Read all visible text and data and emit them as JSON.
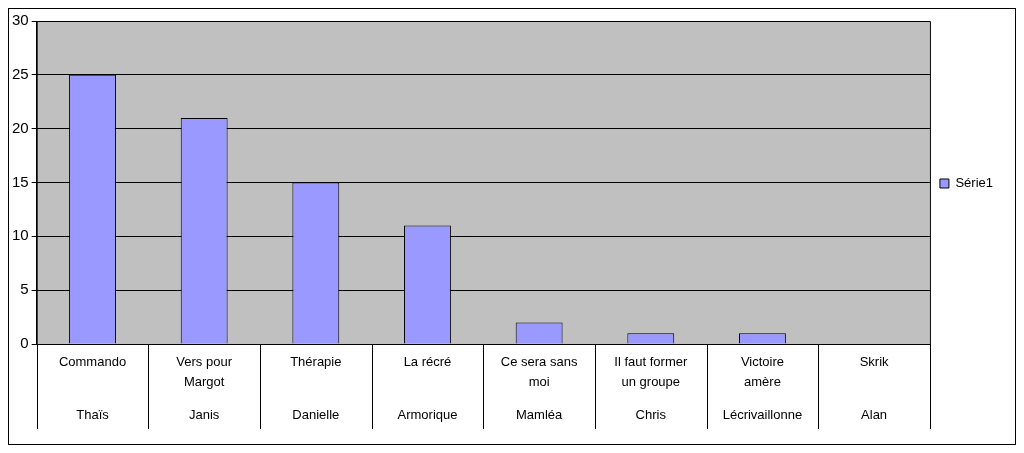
{
  "chart_data": {
    "type": "bar",
    "categories": [
      "Commando",
      "Vers pour Margot",
      "Thérapie",
      "La récré",
      "Ce sera sans moi",
      "Il faut former un groupe",
      "Victoire amère",
      "Skrik"
    ],
    "series": [
      {
        "name": "Série1",
        "color": "#9999ff",
        "values": [
          25,
          21,
          15,
          11,
          2,
          1,
          1,
          0
        ]
      }
    ],
    "annotations": [
      "Thaïs",
      "Janis",
      "Danielle",
      "Armorique",
      "Mamléa",
      "Chris",
      "Lécrivaillonne",
      "Alan"
    ],
    "ylim": [
      0,
      30
    ],
    "yticks": [
      0,
      5,
      10,
      15,
      20,
      25,
      30
    ],
    "grid": "y",
    "legend": "right"
  }
}
